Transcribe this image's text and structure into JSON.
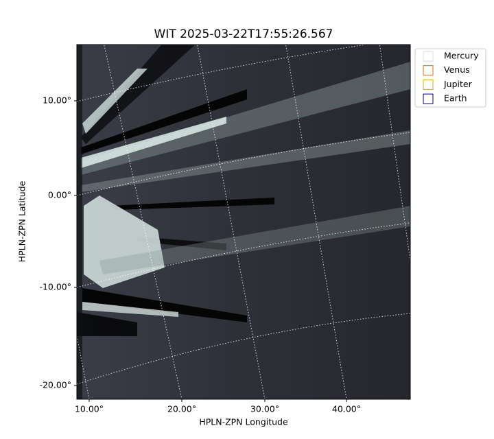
{
  "header": {
    "title": "WIT 2025-03-22T17:55:26.567"
  },
  "axes": {
    "xlabel": "HPLN-ZPN Longitude",
    "ylabel": "HPLN-ZPN Latitude",
    "xticks": [
      "10.00°",
      "20.00°",
      "30.00°",
      "40.00°"
    ],
    "yticks": [
      "10.00°",
      "0.00°",
      "-10.00°",
      "-20.00°"
    ]
  },
  "legend": {
    "items": [
      "Mercury",
      "Venus",
      "Jupiter",
      "Earth"
    ]
  }
}
